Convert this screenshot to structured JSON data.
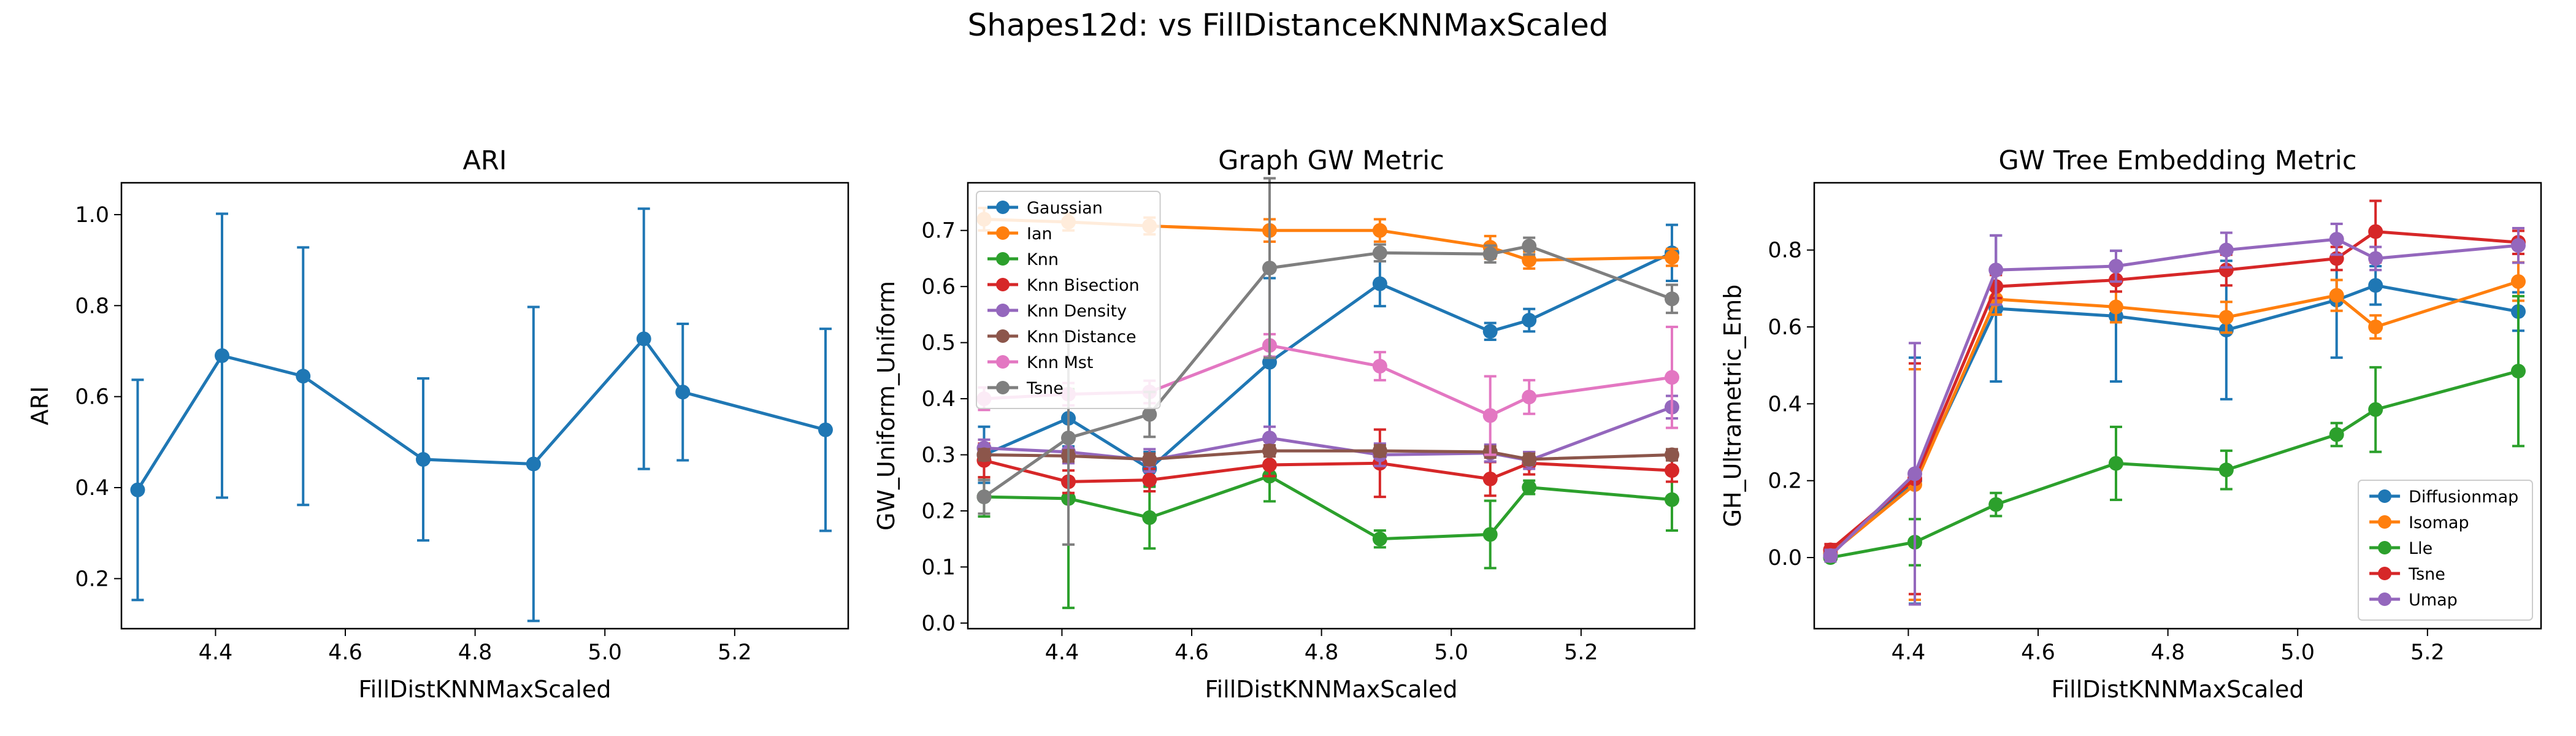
{
  "figure": {
    "suptitle": "Shapes12d: vs FillDistanceKNNMaxScaled"
  },
  "colors": {
    "blue": "#1f77b4",
    "orange": "#ff7f0e",
    "green": "#2ca02c",
    "red": "#d62728",
    "purple": "#9467bd",
    "brown": "#8c564b",
    "pink": "#e377c2",
    "gray": "#7f7f7f"
  },
  "chart_data": [
    {
      "type": "line",
      "title": "ARI",
      "xlabel": "FillDistKNNMaxScaled",
      "ylabel": "ARI",
      "xlim": [
        4.255,
        5.375
      ],
      "ylim": [
        0.09,
        1.07
      ],
      "xticks": [
        4.4,
        4.6,
        4.8,
        5.0,
        5.2
      ],
      "yticks": [
        0.2,
        0.4,
        0.6,
        0.8,
        1.0
      ],
      "grid": false,
      "legend": null,
      "x": [
        4.28,
        4.41,
        4.535,
        4.72,
        4.89,
        5.06,
        5.12,
        5.34
      ],
      "series": [
        {
          "color": "#1f77b4",
          "values": [
            0.395,
            0.69,
            0.645,
            0.462,
            0.452,
            0.727,
            0.61,
            0.527
          ],
          "err": [
            0.242,
            0.312,
            0.283,
            0.178,
            0.345,
            0.286,
            0.15,
            0.222
          ]
        }
      ]
    },
    {
      "type": "line",
      "title": "Graph GW Metric",
      "xlabel": "FillDistKNNMaxScaled",
      "ylabel": "GW_Uniform_Uniform",
      "xlim": [
        4.255,
        5.375
      ],
      "ylim": [
        -0.01,
        0.785
      ],
      "xticks": [
        4.4,
        4.6,
        4.8,
        5.0,
        5.2
      ],
      "yticks": [
        0.0,
        0.1,
        0.2,
        0.3,
        0.4,
        0.5,
        0.6,
        0.7
      ],
      "grid": false,
      "legend": "upper-left",
      "x": [
        4.28,
        4.41,
        4.535,
        4.72,
        4.89,
        5.06,
        5.12,
        5.34
      ],
      "series": [
        {
          "name": "Gaussian",
          "color": "#1f77b4",
          "values": [
            0.3,
            0.365,
            0.275,
            0.465,
            0.605,
            0.52,
            0.54,
            0.66
          ],
          "err": [
            0.05,
            0.05,
            0.03,
            0.15,
            0.04,
            0.015,
            0.02,
            0.05
          ]
        },
        {
          "name": "Ian",
          "color": "#ff7f0e",
          "values": [
            0.72,
            0.715,
            0.708,
            0.7,
            0.7,
            0.67,
            0.647,
            0.652
          ],
          "err": [
            0.02,
            0.015,
            0.015,
            0.02,
            0.02,
            0.02,
            0.015,
            0.015
          ]
        },
        {
          "name": "Knn",
          "color": "#2ca02c",
          "values": [
            0.225,
            0.222,
            0.188,
            0.262,
            0.15,
            0.158,
            0.242,
            0.22
          ],
          "err": [
            0.035,
            0.195,
            0.055,
            0.045,
            0.015,
            0.06,
            0.012,
            0.055
          ]
        },
        {
          "name": "Knn Bisection",
          "color": "#d62728",
          "values": [
            0.29,
            0.252,
            0.255,
            0.282,
            0.285,
            0.257,
            0.285,
            0.272
          ],
          "err": [
            0.03,
            0.02,
            0.02,
            0.02,
            0.06,
            0.03,
            0.02,
            0.02
          ]
        },
        {
          "name": "Knn Density",
          "color": "#9467bd",
          "values": [
            0.312,
            0.305,
            0.29,
            0.33,
            0.3,
            0.303,
            0.29,
            0.385
          ],
          "err": [
            0.015,
            0.02,
            0.02,
            0.02,
            0.02,
            0.015,
            0.015,
            0.02
          ]
        },
        {
          "name": "Knn Distance",
          "color": "#8c564b",
          "values": [
            0.3,
            0.298,
            0.292,
            0.307,
            0.307,
            0.305,
            0.292,
            0.3
          ],
          "err": [
            0.01,
            0.01,
            0.01,
            0.01,
            0.01,
            0.01,
            0.01,
            0.01
          ]
        },
        {
          "name": "Knn Mst",
          "color": "#e377c2",
          "values": [
            0.4,
            0.408,
            0.412,
            0.495,
            0.458,
            0.37,
            0.403,
            0.438
          ],
          "err": [
            0.02,
            0.02,
            0.02,
            0.02,
            0.025,
            0.07,
            0.03,
            0.09
          ]
        },
        {
          "name": "Tsne",
          "color": "#7f7f7f",
          "values": [
            0.225,
            0.33,
            0.372,
            0.633,
            0.66,
            0.658,
            0.672,
            0.578
          ],
          "err": [
            0.03,
            0.19,
            0.04,
            0.16,
            0.015,
            0.015,
            0.015,
            0.025
          ]
        }
      ]
    },
    {
      "type": "line",
      "title": "GW Tree Embedding Metric",
      "xlabel": "FillDistKNNMaxScaled",
      "ylabel": "GH_Ultrametric_Emb",
      "xlim": [
        4.255,
        5.375
      ],
      "ylim": [
        -0.185,
        0.975
      ],
      "xticks": [
        4.4,
        4.6,
        4.8,
        5.0,
        5.2
      ],
      "yticks": [
        0.0,
        0.2,
        0.4,
        0.6,
        0.8
      ],
      "grid": false,
      "legend": "lower-right",
      "x": [
        4.28,
        4.41,
        4.535,
        4.72,
        4.89,
        5.06,
        5.12,
        5.34
      ],
      "series": [
        {
          "name": "Diffusionmap",
          "color": "#1f77b4",
          "values": [
            0.01,
            0.2,
            0.648,
            0.628,
            0.592,
            0.67,
            0.708,
            0.64
          ],
          "err": [
            0.015,
            0.32,
            0.19,
            0.17,
            0.18,
            0.15,
            0.05,
            0.05
          ]
        },
        {
          "name": "Isomap",
          "color": "#ff7f0e",
          "values": [
            0.01,
            0.19,
            0.672,
            0.652,
            0.625,
            0.682,
            0.6,
            0.718
          ],
          "err": [
            0.015,
            0.3,
            0.04,
            0.04,
            0.04,
            0.04,
            0.03,
            0.05
          ]
        },
        {
          "name": "Lle",
          "color": "#2ca02c",
          "values": [
            0.0,
            0.04,
            0.138,
            0.245,
            0.228,
            0.32,
            0.385,
            0.485
          ],
          "err": [
            0.01,
            0.06,
            0.03,
            0.095,
            0.05,
            0.03,
            0.11,
            0.195
          ]
        },
        {
          "name": "Tsne",
          "color": "#d62728",
          "values": [
            0.02,
            0.205,
            0.705,
            0.722,
            0.748,
            0.778,
            0.848,
            0.82
          ],
          "err": [
            0.015,
            0.3,
            0.03,
            0.03,
            0.04,
            0.03,
            0.08,
            0.03
          ]
        },
        {
          "name": "Umap",
          "color": "#9467bd",
          "values": [
            0.005,
            0.218,
            0.748,
            0.758,
            0.8,
            0.828,
            0.778,
            0.812
          ],
          "err": [
            0.015,
            0.34,
            0.09,
            0.04,
            0.045,
            0.04,
            0.03,
            0.045
          ]
        }
      ]
    }
  ]
}
